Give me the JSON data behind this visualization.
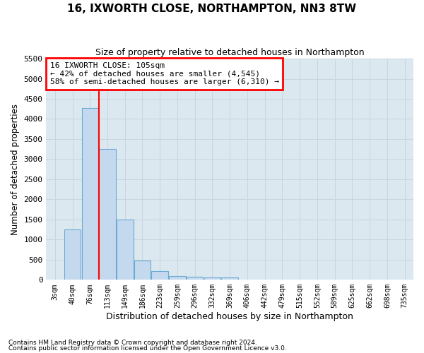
{
  "title": "16, IXWORTH CLOSE, NORTHAMPTON, NN3 8TW",
  "subtitle": "Size of property relative to detached houses in Northampton",
  "xlabel": "Distribution of detached houses by size in Northampton",
  "ylabel": "Number of detached properties",
  "footnote1": "Contains HM Land Registry data © Crown copyright and database right 2024.",
  "footnote2": "Contains public sector information licensed under the Open Government Licence v3.0.",
  "bar_labels": [
    "3sqm",
    "40sqm",
    "76sqm",
    "113sqm",
    "149sqm",
    "186sqm",
    "223sqm",
    "259sqm",
    "296sqm",
    "332sqm",
    "369sqm",
    "406sqm",
    "442sqm",
    "479sqm",
    "515sqm",
    "552sqm",
    "589sqm",
    "625sqm",
    "662sqm",
    "698sqm",
    "735sqm"
  ],
  "bar_values": [
    0,
    1250,
    4280,
    3250,
    1500,
    480,
    220,
    100,
    70,
    60,
    50,
    0,
    0,
    0,
    0,
    0,
    0,
    0,
    0,
    0,
    0
  ],
  "bar_color": "#c5d9ee",
  "bar_edge_color": "#6aaad4",
  "property_line_x": 3.0,
  "property_line_color": "red",
  "annotation_line1": "16 IXWORTH CLOSE: 105sqm",
  "annotation_line2": "← 42% of detached houses are smaller (4,545)",
  "annotation_line3": "58% of semi-detached houses are larger (6,310) →",
  "annotation_box_color": "white",
  "annotation_box_edge": "red",
  "ylim": [
    0,
    5500
  ],
  "yticks": [
    0,
    500,
    1000,
    1500,
    2000,
    2500,
    3000,
    3500,
    4000,
    4500,
    5000,
    5500
  ],
  "grid_color": "#c8d4e0",
  "bg_color": "#dce8f0"
}
